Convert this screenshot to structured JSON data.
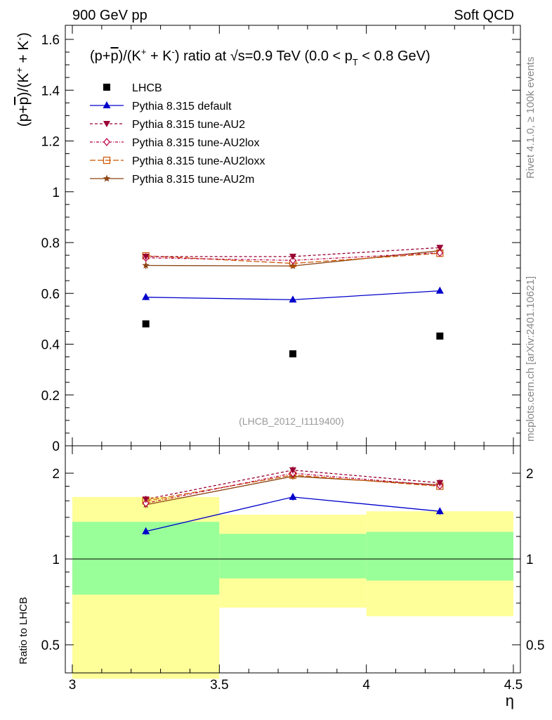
{
  "header": {
    "left": "900 GeV pp",
    "right": "Soft QCD"
  },
  "side_labels": {
    "rivet": "Rivet 4.1.0, ≥ 100k events",
    "mcplots": "mcplots.cern.ch [arXiv:2401.10621]"
  },
  "chart_data": [
    {
      "type": "line",
      "panel": "main",
      "title": "(p+p̄)/(K⁺ + K⁻) ratio at √s=0.9 TeV (0.0 < p_T < 0.8 GeV)",
      "title_parts": {
        "prefix": "(p+",
        "pbar": "p",
        "mid1": ")/(K",
        "plus": "+",
        "mid2": " + K",
        "minus": "-",
        "mid3": ") ratio at ",
        "sqrt": "√",
        "s_part": "s=0.9 TeV (0.0 < p",
        "sub_t": "T",
        "suffix": " < 0.8 GeV)"
      },
      "ylabel": "(p+p̄)/(K⁺ + K⁻)",
      "ylabel_parts": {
        "prefix": "(p+",
        "pbar": "p",
        "mid1": ")/(K",
        "plus": "+",
        "mid2": " + K",
        "minus": "-",
        "end": ")"
      },
      "xlabel": "η",
      "xlim": [
        3,
        4.5
      ],
      "ylim": [
        0,
        1.65
      ],
      "yticks": [
        0,
        0.2,
        0.4,
        0.6,
        0.8,
        1,
        1.2,
        1.4,
        1.6
      ],
      "ytick_labels": [
        "0",
        "0.2",
        "0.4",
        "0.6",
        "0.8",
        "1",
        "1.2",
        "1.4",
        "1.6"
      ],
      "watermark": "(LHCB_2012_I1119400)",
      "x": [
        3.25,
        3.75,
        4.25
      ],
      "series": [
        {
          "name": "LHCB",
          "marker": "square",
          "color": "#000000",
          "dash": "",
          "values": [
            0.48,
            0.362,
            0.432
          ],
          "errors": [
            0.008,
            0.008,
            0.008
          ]
        },
        {
          "name": "Pythia 8.315 default",
          "marker": "triangle-up",
          "color": "#0000cc",
          "dash": "",
          "values": [
            0.585,
            0.575,
            0.61
          ],
          "errors": [
            0.012,
            0.008,
            0.008
          ]
        },
        {
          "name": "Pythia 8.315 tune-AU2",
          "marker": "triangle-down",
          "color": "#990033",
          "dash": "4,3",
          "values": [
            0.745,
            0.745,
            0.78
          ],
          "errors": [
            0.012,
            0.01,
            0.01
          ]
        },
        {
          "name": "Pythia 8.315 tune-AU2lox",
          "marker": "diamond-open",
          "color": "#bb0044",
          "dash": "4,2,1,2",
          "values": [
            0.74,
            0.73,
            0.76
          ],
          "errors": [
            0.012,
            0.01,
            0.01
          ]
        },
        {
          "name": "Pythia 8.315 tune-AU2loxx",
          "marker": "square-open",
          "color": "#cc5500",
          "dash": "8,3",
          "values": [
            0.748,
            0.718,
            0.758
          ],
          "errors": [
            0.012,
            0.01,
            0.01
          ]
        },
        {
          "name": "Pythia 8.315 tune-AU2m",
          "marker": "star",
          "color": "#8b4513",
          "dash": "",
          "values": [
            0.71,
            0.708,
            0.768
          ],
          "errors": [
            0.015,
            0.01,
            0.01
          ]
        }
      ]
    },
    {
      "type": "line",
      "panel": "ratio",
      "ylabel": "Ratio to LHCB",
      "xlabel": "η",
      "xlim": [
        3,
        4.5
      ],
      "ylim": [
        0.4,
        2.4
      ],
      "yscale": "log",
      "xticks": [
        3,
        3.5,
        4,
        4.5
      ],
      "xtick_labels": [
        "3",
        "3.5",
        "4",
        "4.5"
      ],
      "yticks": [
        0.5,
        1,
        2
      ],
      "ytick_labels": [
        "0.5",
        "1",
        "2"
      ],
      "bands": [
        {
          "xmin": 3.0,
          "xmax": 3.5,
          "inner": [
            0.75,
            1.35
          ],
          "outer": [
            0.38,
            1.65
          ]
        },
        {
          "xmin": 3.5,
          "xmax": 4.0,
          "inner": [
            0.855,
            1.225
          ],
          "outer": [
            0.675,
            1.43
          ]
        },
        {
          "xmin": 4.0,
          "xmax": 4.5,
          "inner": [
            0.84,
            1.245
          ],
          "outer": [
            0.63,
            1.47
          ]
        }
      ],
      "x": [
        3.25,
        3.75,
        4.25
      ],
      "series": [
        {
          "name": "Pythia 8.315 default",
          "values": [
            1.25,
            1.65,
            1.47
          ]
        },
        {
          "name": "Pythia 8.315 tune-AU2",
          "values": [
            1.62,
            2.05,
            1.85
          ]
        },
        {
          "name": "Pythia 8.315 tune-AU2lox",
          "values": [
            1.57,
            2.0,
            1.81
          ]
        },
        {
          "name": "Pythia 8.315 tune-AU2loxx",
          "values": [
            1.6,
            1.97,
            1.8
          ]
        },
        {
          "name": "Pythia 8.315 tune-AU2m",
          "values": [
            1.55,
            1.95,
            1.82
          ]
        }
      ]
    }
  ]
}
